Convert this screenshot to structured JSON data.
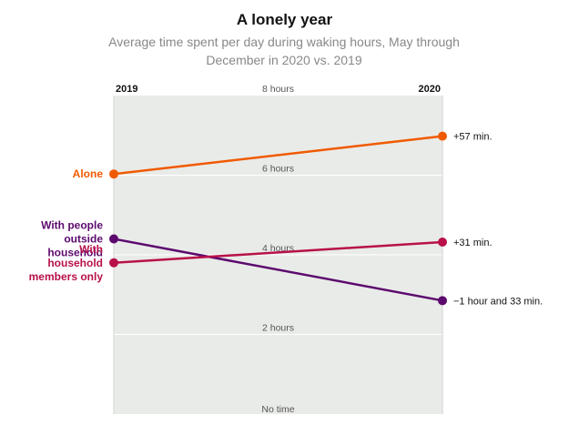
{
  "title": "A lonely year",
  "subtitle": "Average time spent per day during waking hours, May through December in 2020 vs. 2019",
  "chart_data": {
    "type": "line",
    "title": "A lonely year",
    "subtitle": "Average time spent per day during waking hours, May through December in 2020 vs. 2019",
    "x": [
      "2019",
      "2020"
    ],
    "y_unit": "hours",
    "ylim": [
      0,
      8
    ],
    "y_ticks": [
      {
        "value": 0,
        "label": "No time"
      },
      {
        "value": 2,
        "label": "2 hours"
      },
      {
        "value": 4,
        "label": "4 hours"
      },
      {
        "value": 6,
        "label": "6 hours"
      },
      {
        "value": 8,
        "label": "8 hours"
      }
    ],
    "grid": true,
    "series": [
      {
        "name": "Alone",
        "color": "#f05a00",
        "values": [
          6.03,
          6.98
        ],
        "change_label": "+57 min."
      },
      {
        "name": "With people outside household",
        "color": "#5c0a6e",
        "values": [
          4.4,
          2.85
        ],
        "change_label": "−1 hour and 33 min."
      },
      {
        "name": "With household members only",
        "color": "#b8114a",
        "values": [
          3.8,
          4.32
        ],
        "change_label": "+31 min."
      }
    ],
    "series_labels": {
      "Alone": [
        "Alone"
      ],
      "With people outside household": [
        "With people",
        "outside",
        "household"
      ],
      "With household members only": [
        "With",
        "household",
        "members only"
      ]
    }
  }
}
